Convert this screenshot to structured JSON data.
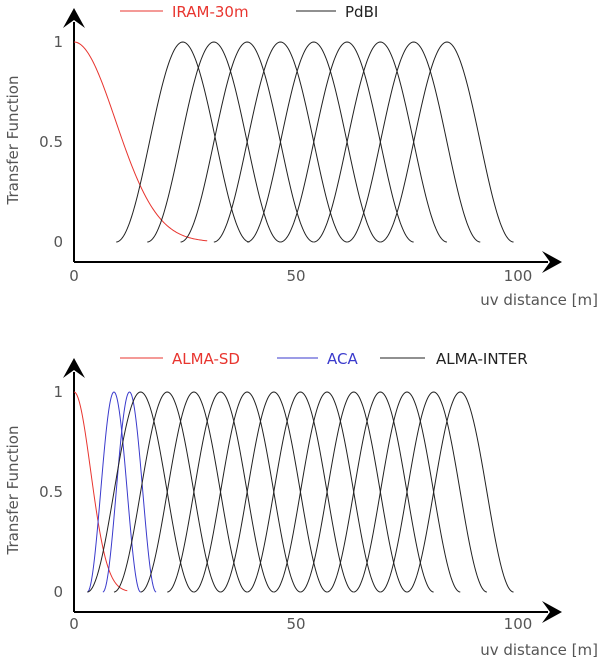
{
  "chart_data": [
    {
      "type": "line",
      "title": "",
      "xlabel": "uv distance [m]",
      "ylabel": "Transfer Function",
      "xlim": [
        0,
        100
      ],
      "ylim": [
        0,
        1
      ],
      "xticks": [
        "0",
        "50",
        "100"
      ],
      "yticks": [
        "0",
        "0.5",
        "1"
      ],
      "grid": false,
      "legend_position": "top",
      "series": [
        {
          "name": "IRAM-30m",
          "color": "#e8352f",
          "shape": "half-gaussian",
          "peaks_at": [
            0
          ],
          "x_extent": [
            0,
            30
          ]
        },
        {
          "name": "PdBI",
          "color": "#222222",
          "shape": "bell",
          "peaks_at": [
            24.5,
            31.5,
            39,
            46.5,
            54,
            61.5,
            69,
            76.5,
            84
          ],
          "half_width": 15
        }
      ]
    },
    {
      "type": "line",
      "title": "",
      "xlabel": "uv distance [m]",
      "ylabel": "Transfer Function",
      "xlim": [
        0,
        100
      ],
      "ylim": [
        0,
        1
      ],
      "xticks": [
        "0",
        "50",
        "100"
      ],
      "yticks": [
        "0",
        "0.5",
        "1"
      ],
      "grid": false,
      "legend_position": "top",
      "series": [
        {
          "name": "ALMA-SD",
          "color": "#e8352f",
          "shape": "half-gaussian",
          "peaks_at": [
            0
          ],
          "x_extent": [
            0,
            12
          ]
        },
        {
          "name": "ACA",
          "color": "#3a3acc",
          "shape": "bell",
          "peaks_at": [
            9,
            12.5
          ],
          "half_width": 6
        },
        {
          "name": "ALMA-INTER",
          "color": "#222222",
          "shape": "bell",
          "peaks_at": [
            15,
            21,
            27,
            33,
            39,
            45,
            51,
            57,
            63,
            69,
            75,
            81,
            87
          ],
          "half_width": 12
        }
      ]
    }
  ]
}
